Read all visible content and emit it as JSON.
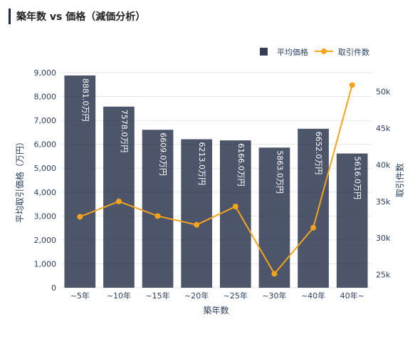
{
  "header": {
    "title": "築年数 vs 価格（減価分析）"
  },
  "chart_data": {
    "type": "bar+line",
    "title": "",
    "xlabel": "築年数",
    "ylabel": "平均取引価格（万円）",
    "y2label": "取引件数",
    "categories": [
      "~5年",
      "~10年",
      "~15年",
      "~20年",
      "~25年",
      "~30年",
      "~40年",
      "40年~"
    ],
    "series": [
      {
        "name": "平均価格",
        "kind": "bar",
        "axis": "y",
        "values": [
          8881.0,
          7578.0,
          6609.0,
          6213.0,
          6166.0,
          5863.0,
          6652.0,
          5616.0
        ],
        "labels": [
          "8881.0万円",
          "7578.0万円",
          "6609.0万円",
          "6213.0万円",
          "6166.0万円",
          "5863.0万円",
          "6652.0万円",
          "5616.0万円"
        ]
      },
      {
        "name": "取引件数",
        "kind": "line",
        "axis": "y2",
        "values": [
          32900,
          35000,
          33000,
          31800,
          34300,
          25100,
          31400,
          50900
        ]
      }
    ],
    "ylim": [
      0,
      9000
    ],
    "yticks": [
      0,
      1000,
      2000,
      3000,
      4000,
      5000,
      6000,
      7000,
      8000,
      9000
    ],
    "ytick_labels": [
      "0",
      "1,000",
      "2,000",
      "3,000",
      "4,000",
      "5,000",
      "6,000",
      "7,000",
      "8,000",
      "9,000"
    ],
    "y2lim": [
      23200,
      52600
    ],
    "y2ticks": [
      25000,
      30000,
      35000,
      40000,
      45000,
      50000
    ],
    "y2tick_labels": [
      "25k",
      "30k",
      "35k",
      "40k",
      "45k",
      "50k"
    ],
    "legend_position": "top-right",
    "grid": true,
    "colors": {
      "bar": "#1f2a44",
      "line": "#f5a31a",
      "grid": "#e6e6e6",
      "axis_text": "#2a3f5f",
      "bar_label": "#ffffff"
    }
  }
}
